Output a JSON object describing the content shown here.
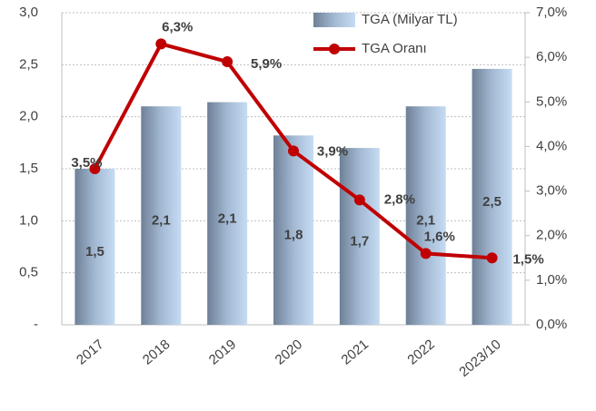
{
  "chart_data": {
    "type": "bar-line",
    "categories": [
      "2017",
      "2018",
      "2019",
      "2020",
      "2021",
      "2022",
      "2023/10"
    ],
    "series": [
      {
        "name": "TGA (Milyar TL)",
        "type": "bar",
        "color": "#a9c4e4",
        "values": [
          1.5,
          2.1,
          2.14,
          1.82,
          1.7,
          2.1,
          2.46
        ],
        "value_labels": [
          "1,5",
          "2,1",
          "2,1",
          "1,8",
          "1,7",
          "2,1",
          "2,5"
        ]
      },
      {
        "name": "TGA Oranı",
        "type": "line",
        "axis": "y2",
        "color": "#c00000",
        "values": [
          3.5,
          6.3,
          5.9,
          3.9,
          2.8,
          1.6,
          1.5
        ],
        "value_labels": [
          "3,5%",
          "6,3%",
          "5,9%",
          "3,9%",
          "2,8%",
          "1,6%",
          "1,5%"
        ]
      }
    ],
    "ylim": [
      0,
      3
    ],
    "yticks": [
      {
        "value": 0,
        "label": "-"
      },
      {
        "value": 0.5,
        "label": "0,5"
      },
      {
        "value": 1,
        "label": "1,0"
      },
      {
        "value": 1.5,
        "label": "1,5"
      },
      {
        "value": 2,
        "label": "2,0"
      },
      {
        "value": 2.5,
        "label": "2,5"
      },
      {
        "value": 3,
        "label": "3,0"
      }
    ],
    "y2lim": [
      0,
      7
    ],
    "y2ticks": [
      {
        "value": 0,
        "label": "0,0%"
      },
      {
        "value": 1,
        "label": "1,0%"
      },
      {
        "value": 2,
        "label": "2,0%"
      },
      {
        "value": 3,
        "label": "3,0%"
      },
      {
        "value": 4,
        "label": "4,0%"
      },
      {
        "value": 5,
        "label": "5,0%"
      },
      {
        "value": 6,
        "label": "6,0%"
      },
      {
        "value": 7,
        "label": "7,0%"
      }
    ],
    "grid": true
  }
}
